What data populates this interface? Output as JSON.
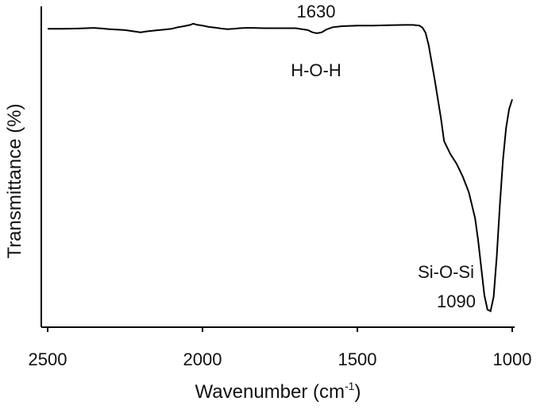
{
  "chart_data": {
    "type": "line",
    "xlabel": "Wavenumber (cm",
    "xlabel_sup": "-1",
    "xlabel_close": ")",
    "ylabel": "Transmittance (%)",
    "xlim": [
      2500,
      1000
    ],
    "x_reversed": true,
    "ylim": [
      0,
      100
    ],
    "y_ticks_shown": false,
    "grid": false,
    "legend": "none",
    "xticks": [
      2500,
      2000,
      1500,
      1000
    ],
    "xtick_labels": [
      "2500",
      "2000",
      "1500",
      "1000"
    ],
    "line_color": "#000000",
    "series": [
      {
        "x": [
          2500,
          2450,
          2400,
          2350,
          2300,
          2250,
          2200,
          2180,
          2150,
          2120,
          2100,
          2080,
          2060,
          2040,
          2030,
          2020,
          2000,
          1980,
          1960,
          1940,
          1920,
          1900,
          1880,
          1860,
          1840,
          1800,
          1750,
          1700,
          1660,
          1645,
          1630,
          1615,
          1600,
          1580,
          1550,
          1500,
          1450,
          1400,
          1350,
          1320,
          1300,
          1290,
          1280,
          1270,
          1260,
          1250,
          1240,
          1230,
          1220,
          1200,
          1180,
          1160,
          1140,
          1120,
          1110,
          1100,
          1090,
          1080,
          1070,
          1060,
          1050,
          1040,
          1030,
          1020,
          1010,
          1000
        ],
        "y": [
          93.0,
          93.0,
          93.1,
          93.3,
          92.9,
          92.6,
          91.9,
          92.2,
          92.5,
          92.8,
          93.0,
          93.5,
          93.8,
          94.2,
          94.6,
          94.3,
          94.0,
          93.6,
          93.4,
          93.1,
          92.9,
          93.0,
          93.2,
          93.3,
          93.3,
          93.2,
          93.2,
          93.2,
          92.6,
          91.9,
          91.6,
          91.9,
          92.8,
          93.5,
          93.8,
          94.0,
          94.0,
          94.1,
          94.2,
          94.2,
          94.0,
          93.4,
          91.8,
          88.0,
          82.5,
          77.0,
          71.0,
          65.0,
          58.0,
          54.0,
          51.0,
          47.0,
          42.0,
          34.0,
          27.0,
          18.5,
          10.0,
          5.5,
          5.0,
          9.5,
          22.0,
          38.0,
          52.0,
          62.0,
          68.0,
          71.0
        ]
      }
    ],
    "annotations": [
      {
        "id": "a1630",
        "text": "1630",
        "x": 1630
      },
      {
        "id": "ahoh",
        "text": "H-O-H",
        "x": 1630
      },
      {
        "id": "asiosi",
        "text": "Si-O-Si",
        "x": 1090
      },
      {
        "id": "a1090",
        "text": "1090",
        "x": 1090
      }
    ]
  }
}
